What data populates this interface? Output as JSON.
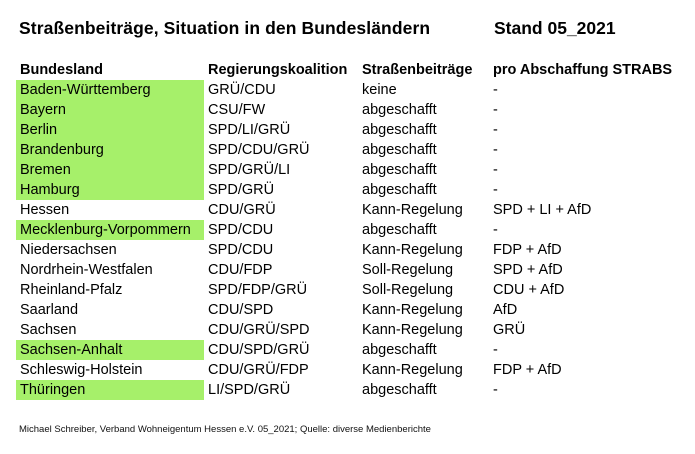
{
  "title": "Straßenbeiträge, Situation in den Bundesländern",
  "stand": "Stand 05_2021",
  "columns": [
    "Bundesland",
    "Regierungskoalition",
    "Straßenbeiträge",
    "pro Abschaffung STRABS"
  ],
  "highlight_color": "#a6f06a",
  "rows": [
    {
      "land": "Baden-Württemberg",
      "koalition": "GRÜ/CDU",
      "beitraege": "keine",
      "pro": "-",
      "highlight": true
    },
    {
      "land": "Bayern",
      "koalition": "CSU/FW",
      "beitraege": "abgeschafft",
      "pro": "-",
      "highlight": true
    },
    {
      "land": "Berlin",
      "koalition": "SPD/LI/GRÜ",
      "beitraege": "abgeschafft",
      "pro": "-",
      "highlight": true
    },
    {
      "land": "Brandenburg",
      "koalition": "SPD/CDU/GRÜ",
      "beitraege": "abgeschafft",
      "pro": "-",
      "highlight": true
    },
    {
      "land": "Bremen",
      "koalition": "SPD/GRÜ/LI",
      "beitraege": "abgeschafft",
      "pro": "-",
      "highlight": true
    },
    {
      "land": "Hamburg",
      "koalition": "SPD/GRÜ",
      "beitraege": "abgeschafft",
      "pro": "-",
      "highlight": true
    },
    {
      "land": "Hessen",
      "koalition": "CDU/GRÜ",
      "beitraege": "Kann-Regelung",
      "pro": "SPD + LI + AfD",
      "highlight": false
    },
    {
      "land": "Mecklenburg-Vorpommern",
      "koalition": "SPD/CDU",
      "beitraege": "abgeschafft",
      "pro": "-",
      "highlight": true
    },
    {
      "land": "Niedersachsen",
      "koalition": "SPD/CDU",
      "beitraege": "Kann-Regelung",
      "pro": "FDP + AfD",
      "highlight": false
    },
    {
      "land": "Nordrhein-Westfalen",
      "koalition": "CDU/FDP",
      "beitraege": "Soll-Regelung",
      "pro": "SPD + AfD",
      "highlight": false
    },
    {
      "land": "Rheinland-Pfalz",
      "koalition": "SPD/FDP/GRÜ",
      "beitraege": "Soll-Regelung",
      "pro": "CDU + AfD",
      "highlight": false
    },
    {
      "land": "Saarland",
      "koalition": "CDU/SPD",
      "beitraege": "Kann-Regelung",
      "pro": "AfD",
      "highlight": false
    },
    {
      "land": "Sachsen",
      "koalition": "CDU/GRÜ/SPD",
      "beitraege": "Kann-Regelung",
      "pro": "GRÜ",
      "highlight": false
    },
    {
      "land": "Sachsen-Anhalt",
      "koalition": "CDU/SPD/GRÜ",
      "beitraege": "abgeschafft",
      "pro": "-",
      "highlight": true
    },
    {
      "land": "Schleswig-Holstein",
      "koalition": "CDU/GRÜ/FDP",
      "beitraege": "Kann-Regelung",
      "pro": "FDP + AfD",
      "highlight": false
    },
    {
      "land": "Thüringen",
      "koalition": "LI/SPD/GRÜ",
      "beitraege": "abgeschafft",
      "pro": "-",
      "highlight": true
    }
  ],
  "footer": "Michael Schreiber, Verband Wohneigentum Hessen e.V. 05_2021; Quelle: diverse Medienberichte"
}
